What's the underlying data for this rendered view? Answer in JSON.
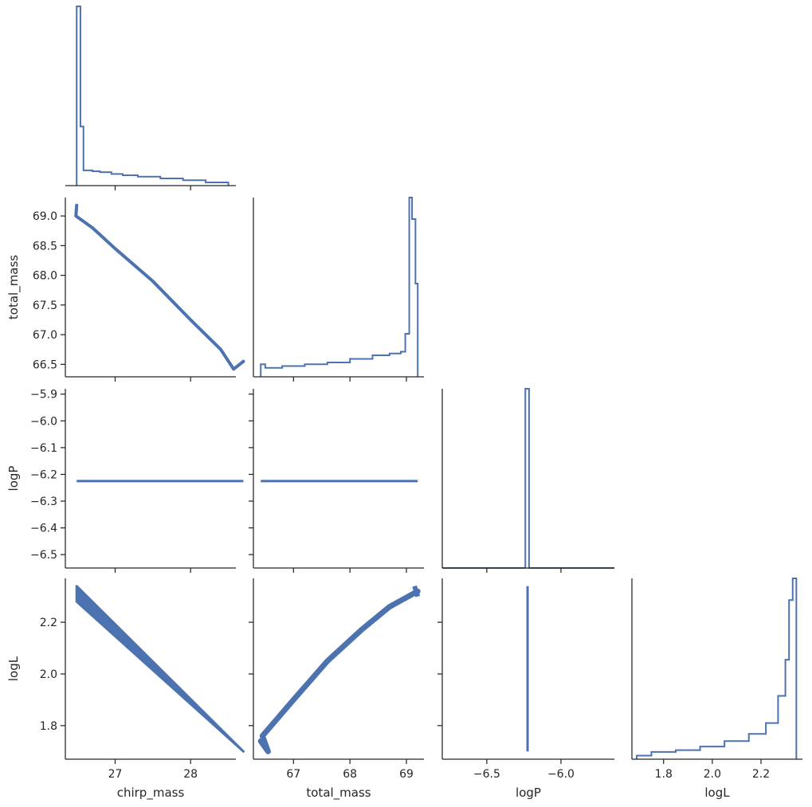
{
  "figure_kind": "pairplot corner",
  "colors": {
    "series": "#4c72b0",
    "axes": "#262626",
    "background": "#ffffff"
  },
  "chart_data": {
    "type": "pairplot",
    "variables": [
      "chirp_mass",
      "total_mass",
      "logP",
      "logL"
    ],
    "axis_labels": {
      "x": [
        "chirp_mass",
        "total_mass",
        "logP",
        "logL"
      ],
      "y": [
        "",
        "total_mass",
        "logP",
        "logL"
      ]
    },
    "ticks": {
      "chirp_mass": [
        "27",
        "28"
      ],
      "total_mass": [
        "67",
        "68",
        "69"
      ],
      "total_mass_y": [
        "66.5",
        "67.0",
        "67.5",
        "68.0",
        "68.5",
        "69.0"
      ],
      "logP_y": [
        "−6.5",
        "−6.4",
        "−6.3",
        "−6.2",
        "−6.1",
        "−6.0",
        "−5.9"
      ],
      "logP_x": [
        "−6.5",
        "−6.0"
      ],
      "logL": [
        "1.8",
        "2.0",
        "2.2"
      ]
    },
    "ranges": {
      "chirp_mass": [
        26.34,
        28.6
      ],
      "total_mass": [
        66.29,
        69.31
      ],
      "logP": [
        -6.55,
        -5.88
      ],
      "logL": [
        1.67,
        2.37
      ],
      "logP_hist_x": [
        -6.8,
        -5.64
      ]
    },
    "histograms": {
      "chirp_mass": {
        "edges": [
          26.49,
          26.54,
          26.58,
          26.7,
          26.8,
          26.95,
          27.1,
          27.3,
          27.6,
          27.9,
          28.2,
          28.5
        ],
        "counts": [
          1.0,
          0.33,
          0.085,
          0.08,
          0.075,
          0.065,
          0.058,
          0.05,
          0.04,
          0.03,
          0.018
        ]
      },
      "total_mass": {
        "edges": [
          66.42,
          66.5,
          66.8,
          67.2,
          67.6,
          68.0,
          68.4,
          68.7,
          68.9,
          68.98,
          69.05,
          69.1,
          69.16,
          69.2
        ],
        "counts": [
          0.07,
          0.05,
          0.06,
          0.07,
          0.08,
          0.1,
          0.12,
          0.13,
          0.14,
          0.24,
          1.0,
          0.88,
          0.52
        ]
      },
      "logP": {
        "edges": [
          -6.8,
          -6.24,
          -6.215,
          -5.64
        ],
        "counts": [
          0.0,
          1.0,
          0.0
        ]
      },
      "logL": {
        "edges": [
          1.69,
          1.75,
          1.85,
          1.95,
          2.05,
          2.15,
          2.22,
          2.27,
          2.3,
          2.315,
          2.33,
          2.345
        ],
        "counts": [
          0.02,
          0.04,
          0.05,
          0.07,
          0.1,
          0.14,
          0.2,
          0.35,
          0.55,
          0.88,
          1.0
        ]
      }
    },
    "scatter": {
      "total_mass_vs_chirp_mass": [
        [
          26.49,
          69.18
        ],
        [
          26.48,
          69.0
        ],
        [
          26.7,
          68.8
        ],
        [
          27.0,
          68.45
        ],
        [
          27.5,
          67.9
        ],
        [
          28.0,
          67.25
        ],
        [
          28.4,
          66.75
        ],
        [
          28.57,
          66.42
        ],
        [
          28.7,
          66.55
        ]
      ],
      "logP_vs_chirp_mass": {
        "x_range": [
          26.49,
          28.7
        ],
        "y": -6.225
      },
      "logP_vs_total_mass": {
        "x_range": [
          66.42,
          69.2
        ],
        "y": -6.225
      },
      "logL_vs_chirp_mass": {
        "x_range": [
          26.49,
          28.7
        ],
        "y_top": [
          2.34,
          1.7
        ],
        "y_bottom": [
          2.28,
          1.7
        ]
      },
      "logL_vs_total_mass": [
        [
          66.42,
          1.74
        ],
        [
          66.55,
          1.7
        ],
        [
          66.45,
          1.76
        ],
        [
          67.0,
          1.9
        ],
        [
          67.6,
          2.05
        ],
        [
          68.2,
          2.17
        ],
        [
          68.7,
          2.26
        ],
        [
          69.2,
          2.32
        ]
      ],
      "logL_vs_logP": {
        "x": -6.225,
        "y_range": [
          1.7,
          2.34
        ]
      }
    }
  }
}
